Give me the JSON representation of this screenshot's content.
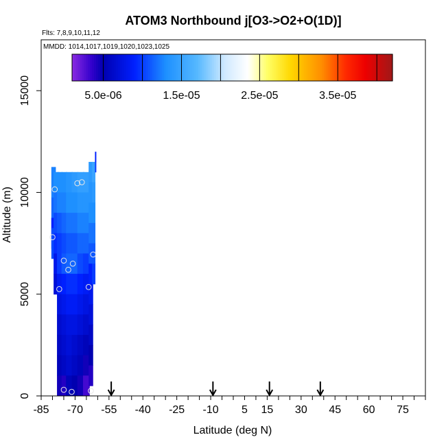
{
  "chart_data": {
    "type": "heatmap",
    "title": "ATOM3 Northbound j[O3->O2+O(1D)]",
    "subtitle_flights": "Flts: 7,8,9,10,11,12",
    "subtitle_dates": "MMDD: 1014,1017,1019,1020,1023,1025",
    "xlabel": "Latitude (deg N)",
    "ylabel": "Altitude (m)",
    "xlim": [
      -85,
      85
    ],
    "ylim": [
      0,
      17500
    ],
    "x_ticks": [
      -85,
      -70,
      -55,
      -40,
      -25,
      -10,
      5,
      15,
      30,
      45,
      60,
      75
    ],
    "x_minor_step": 5,
    "y_ticks": [
      0,
      5000,
      10000,
      15000
    ],
    "colorbar": {
      "range": [
        1e-06,
        4.2e-05
      ],
      "tick_values": [
        5e-06,
        1.5e-05,
        2.5e-05,
        3.5e-05
      ],
      "tick_labels": [
        "5.0e-06",
        "1.5e-05",
        "2.5e-05",
        "3.5e-05"
      ],
      "line_values": [
        5e-06,
        1e-05,
        1.5e-05,
        2e-05,
        2.5e-05,
        3e-05,
        3.5e-05,
        4e-05
      ],
      "stops": [
        {
          "v": 1e-06,
          "color": "#8a2be2"
        },
        {
          "v": 3.5e-06,
          "color": "#3300cc"
        },
        {
          "v": 5e-06,
          "color": "#0000b0"
        },
        {
          "v": 9e-06,
          "color": "#0020ff"
        },
        {
          "v": 1.3e-05,
          "color": "#1e90ff"
        },
        {
          "v": 1.7e-05,
          "color": "#55b8ff"
        },
        {
          "v": 2.05e-05,
          "color": "#cfe9ff"
        },
        {
          "v": 2.35e-05,
          "color": "#ffffff"
        },
        {
          "v": 2.6e-05,
          "color": "#ffff66"
        },
        {
          "v": 2.9e-05,
          "color": "#ffd700"
        },
        {
          "v": 3.3e-05,
          "color": "#ff8c00"
        },
        {
          "v": 3.6e-05,
          "color": "#ff2a00"
        },
        {
          "v": 3.85e-05,
          "color": "#ee0000"
        },
        {
          "v": 4.2e-05,
          "color": "#a01818"
        }
      ]
    },
    "columns": [
      {
        "x0": -80.5,
        "x1": -78.5,
        "cells": [
          {
            "alt": 10500,
            "v": 1.25e-05
          },
          {
            "alt": 9000,
            "v": 1.15e-05
          },
          {
            "alt": 8000,
            "v": 9e-06
          },
          {
            "alt": 7500,
            "v": 1.05e-05
          }
        ]
      },
      {
        "x0": -79.5,
        "x1": -77.0,
        "cells": [
          {
            "alt": 10500,
            "v": 1.3e-05
          },
          {
            "alt": 9500,
            "v": 1.2e-05
          },
          {
            "alt": 8500,
            "v": 1.05e-05
          },
          {
            "alt": 7500,
            "v": 9.5e-06
          },
          {
            "alt": 6500,
            "v": 8e-06
          },
          {
            "alt": 5500,
            "v": 7e-06
          }
        ]
      },
      {
        "x0": -78.0,
        "x1": -75.5,
        "cells": [
          {
            "alt": 10500,
            "v": 1.3e-05
          },
          {
            "alt": 9500,
            "v": 1.25e-05
          },
          {
            "alt": 8500,
            "v": 1.1e-05
          },
          {
            "alt": 7500,
            "v": 1e-05
          },
          {
            "alt": 6500,
            "v": 1e-05
          },
          {
            "alt": 5500,
            "v": 8.5e-06
          },
          {
            "alt": 4500,
            "v": 7.5e-06
          },
          {
            "alt": 3500,
            "v": 6.5e-06
          },
          {
            "alt": 2500,
            "v": 6e-06
          },
          {
            "alt": 1500,
            "v": 5.5e-06
          },
          {
            "alt": 500,
            "v": 4.5e-06
          }
        ]
      },
      {
        "x0": -76.0,
        "x1": -73.5,
        "cells": [
          {
            "alt": 10500,
            "v": 1.3e-05
          },
          {
            "alt": 9500,
            "v": 1.25e-05
          },
          {
            "alt": 8500,
            "v": 1.15e-05
          },
          {
            "alt": 7500,
            "v": 1.05e-05
          },
          {
            "alt": 6500,
            "v": 1.1e-05
          },
          {
            "alt": 5500,
            "v": 9e-06
          },
          {
            "alt": 4500,
            "v": 8e-06
          },
          {
            "alt": 3500,
            "v": 7e-06
          },
          {
            "alt": 2500,
            "v": 6.5e-06
          },
          {
            "alt": 1500,
            "v": 6e-06
          },
          {
            "alt": 500,
            "v": 4e-06
          }
        ]
      },
      {
        "x0": -74.0,
        "x1": -71.0,
        "cells": [
          {
            "alt": 10500,
            "v": 1.35e-05
          },
          {
            "alt": 9500,
            "v": 1.3e-05
          },
          {
            "alt": 8500,
            "v": 1.2e-05
          },
          {
            "alt": 7500,
            "v": 1.1e-05
          },
          {
            "alt": 6500,
            "v": 1.15e-05
          },
          {
            "alt": 5500,
            "v": 9.5e-06
          },
          {
            "alt": 4500,
            "v": 8.5e-06
          },
          {
            "alt": 3500,
            "v": 7.5e-06
          },
          {
            "alt": 2500,
            "v": 7e-06
          },
          {
            "alt": 1500,
            "v": 6.5e-06
          },
          {
            "alt": 500,
            "v": 5.5e-06
          }
        ]
      },
      {
        "x0": -71.5,
        "x1": -68.5,
        "cells": [
          {
            "alt": 10500,
            "v": 1.4e-05
          },
          {
            "alt": 9500,
            "v": 1.3e-05
          },
          {
            "alt": 8500,
            "v": 1.2e-05
          },
          {
            "alt": 7500,
            "v": 1.1e-05
          },
          {
            "alt": 6500,
            "v": 1.15e-05
          },
          {
            "alt": 5500,
            "v": 9.5e-06
          },
          {
            "alt": 4500,
            "v": 8.5e-06
          },
          {
            "alt": 3500,
            "v": 7.5e-06
          },
          {
            "alt": 2500,
            "v": 6.5e-06
          },
          {
            "alt": 1500,
            "v": 6e-06
          },
          {
            "alt": 500,
            "v": 5e-06
          }
        ]
      },
      {
        "x0": -69.0,
        "x1": -66.0,
        "cells": [
          {
            "alt": 10500,
            "v": 1.45e-05
          },
          {
            "alt": 9500,
            "v": 1.35e-05
          },
          {
            "alt": 8500,
            "v": 1.25e-05
          },
          {
            "alt": 7500,
            "v": 1.15e-05
          },
          {
            "alt": 6500,
            "v": 1.05e-05
          },
          {
            "alt": 5500,
            "v": 9e-06
          },
          {
            "alt": 4500,
            "v": 8e-06
          },
          {
            "alt": 3500,
            "v": 7e-06
          },
          {
            "alt": 2500,
            "v": 6e-06
          },
          {
            "alt": 1500,
            "v": 5.5e-06
          },
          {
            "alt": 500,
            "v": 4.5e-06
          }
        ]
      },
      {
        "x0": -66.5,
        "x1": -63.5,
        "cells": [
          {
            "alt": 10500,
            "v": 1.45e-05
          },
          {
            "alt": 9500,
            "v": 1.35e-05
          },
          {
            "alt": 8500,
            "v": 1.25e-05
          },
          {
            "alt": 7500,
            "v": 1.15e-05
          },
          {
            "alt": 6500,
            "v": 1e-05
          },
          {
            "alt": 5500,
            "v": 8.5e-06
          },
          {
            "alt": 4500,
            "v": 7.5e-06
          },
          {
            "alt": 3500,
            "v": 6.5e-06
          },
          {
            "alt": 2500,
            "v": 5.5e-06
          },
          {
            "alt": 1500,
            "v": 4.5e-06
          },
          {
            "alt": 500,
            "v": 3e-06
          }
        ]
      },
      {
        "x0": -64.0,
        "x1": -62.0,
        "cells": [
          {
            "alt": 11000,
            "v": 1.4e-05
          },
          {
            "alt": 10000,
            "v": 1.35e-05
          },
          {
            "alt": 9000,
            "v": 1.3e-05
          },
          {
            "alt": 8000,
            "v": 1.2e-05
          },
          {
            "alt": 7000,
            "v": 1.1e-05
          },
          {
            "alt": 6000,
            "v": 9e-06
          },
          {
            "alt": 5000,
            "v": 8e-06
          },
          {
            "alt": 4000,
            "v": 7e-06
          },
          {
            "alt": 3000,
            "v": 6e-06
          },
          {
            "alt": 2000,
            "v": 5e-06
          },
          {
            "alt": 1000,
            "v": 4e-06
          }
        ]
      },
      {
        "x0": -62.5,
        "x1": -61.0,
        "cells": [
          {
            "alt": 11000,
            "v": 1.5e-05
          },
          {
            "alt": 10000,
            "v": 1.4e-05
          },
          {
            "alt": 9000,
            "v": 1.3e-05
          },
          {
            "alt": 8000,
            "v": 1.2e-05
          },
          {
            "alt": 7000,
            "v": 1.1e-05
          },
          {
            "alt": 6000,
            "v": 1e-05
          }
        ]
      },
      {
        "x0": -61.2,
        "x1": -60.6,
        "cells": [
          {
            "alt": 11750,
            "v": 9e-06
          },
          {
            "alt": 11250,
            "v": 1e-05
          }
        ]
      }
    ],
    "points": [
      {
        "lat": -79,
        "alt": 10150
      },
      {
        "lat": -80,
        "alt": 7800
      },
      {
        "lat": -77,
        "alt": 5250
      },
      {
        "lat": -75,
        "alt": 6650
      },
      {
        "lat": -73,
        "alt": 6200
      },
      {
        "lat": -71,
        "alt": 6500
      },
      {
        "lat": -69,
        "alt": 10450
      },
      {
        "lat": -67,
        "alt": 10500
      },
      {
        "lat": -64,
        "alt": 5350
      },
      {
        "lat": -62,
        "alt": 6950
      },
      {
        "lat": -75,
        "alt": 300
      },
      {
        "lat": -71.5,
        "alt": 200
      },
      {
        "lat": -63,
        "alt": 250
      }
    ],
    "arrows": [
      -54,
      -9,
      16,
      38.5
    ]
  }
}
